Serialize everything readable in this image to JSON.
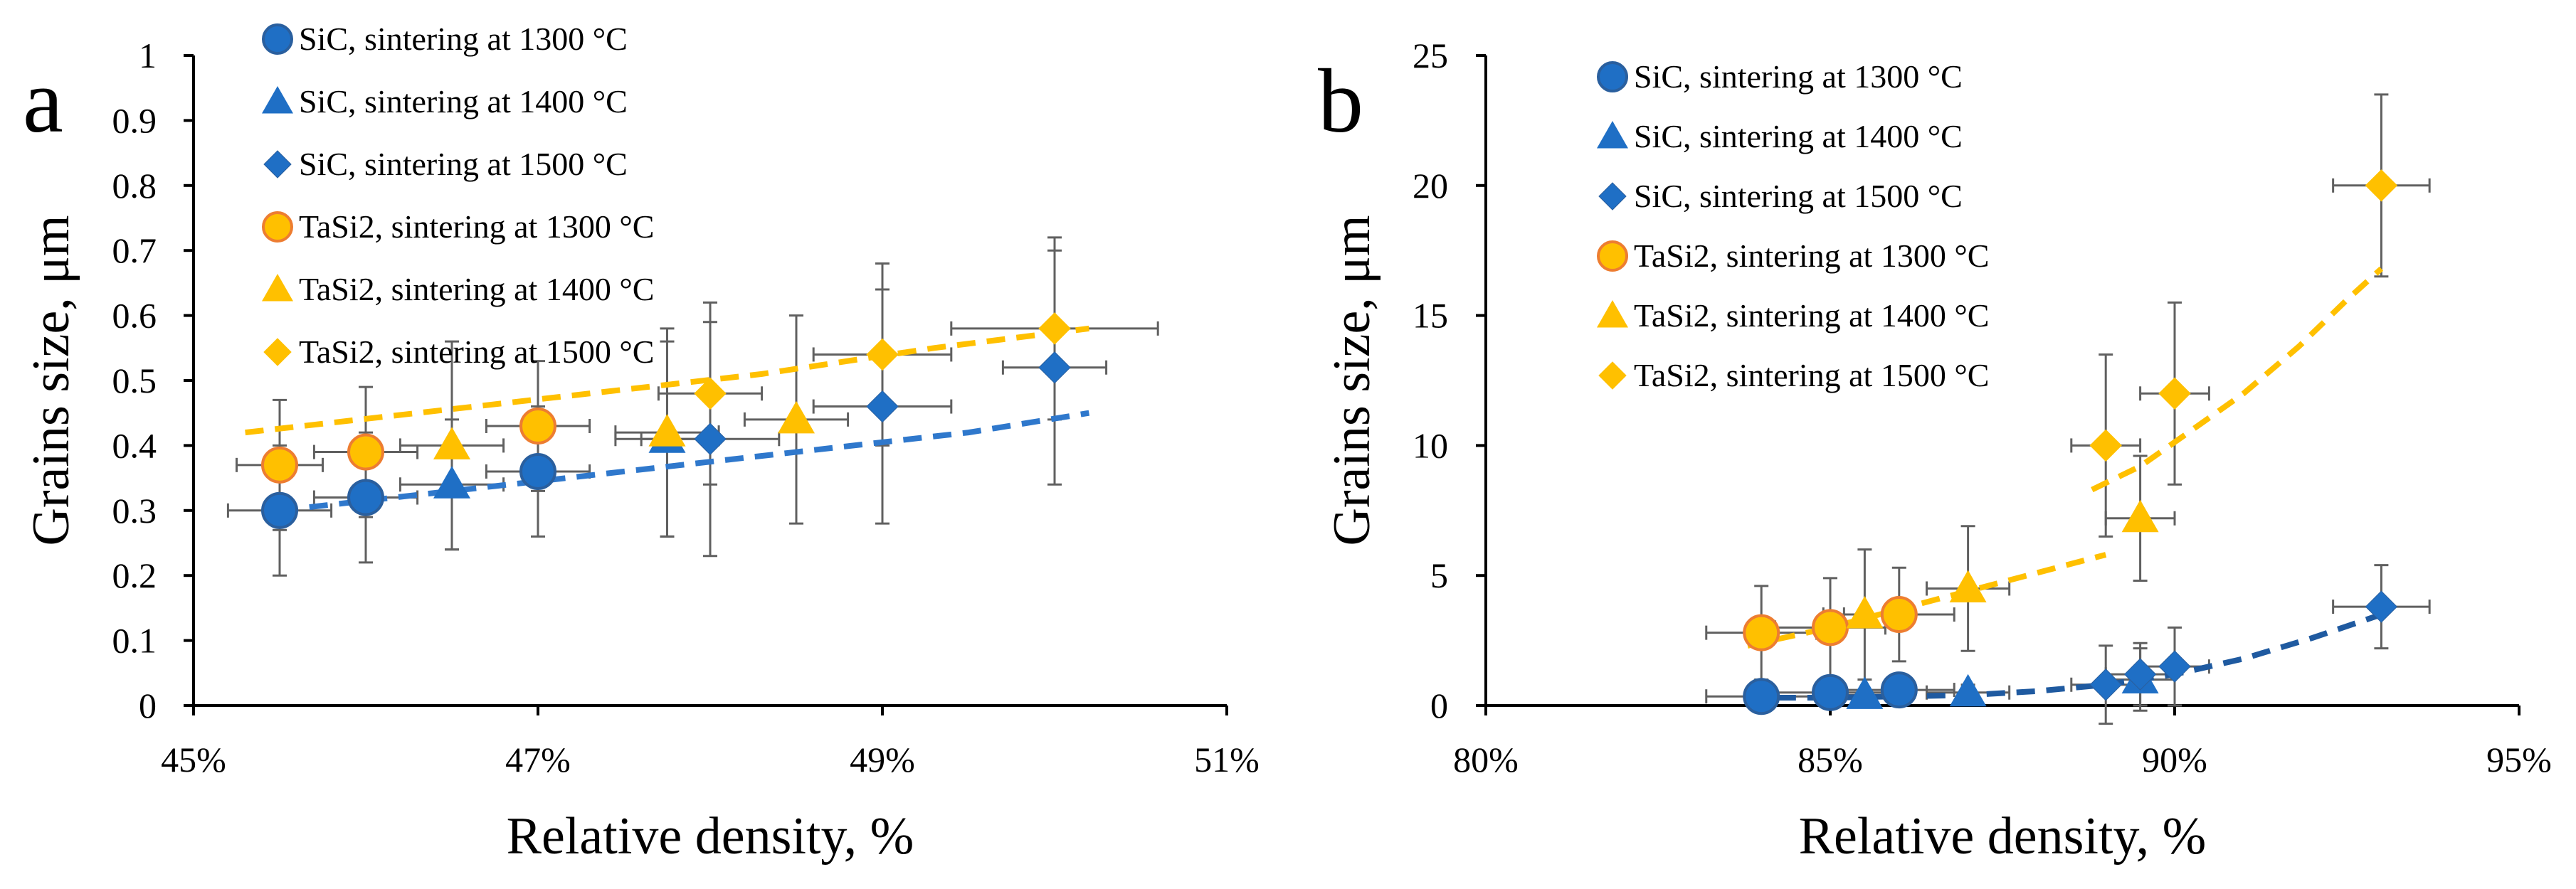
{
  "colors": {
    "sic": "#1f6fc5",
    "sic_marker_edge": "#2a5f9e",
    "tasi2": "#ffc000",
    "tasi2_circle_edge": "#ed7d31",
    "sic_trend": "#2f78cc",
    "sic_trend_b": "#1f5aa0",
    "tasi2_trend": "#ffc000",
    "error_bar": "#606060",
    "axis": "#000000"
  },
  "chart_data": [
    {
      "panel": "a",
      "type": "scatter",
      "xlabel": "Relative density, %",
      "ylabel": "Grains size, μm",
      "xlim": [
        45,
        51
      ],
      "ylim": [
        0,
        1
      ],
      "x_ticks": [
        45,
        47,
        49,
        51
      ],
      "x_tick_labels": [
        "45%",
        "47%",
        "49%",
        "51%"
      ],
      "y_ticks": [
        0,
        0.1,
        0.2,
        0.3,
        0.4,
        0.5,
        0.6,
        0.7,
        0.8,
        0.9,
        1
      ],
      "y_tick_labels": [
        "0",
        "0.1",
        "0.2",
        "0.3",
        "0.4",
        "0.5",
        "0.6",
        "0.7",
        "0.8",
        "0.9",
        "1"
      ],
      "legend_position": "top-left",
      "series": [
        {
          "name": "SiC, sintering at 1300 °C",
          "marker": "circle",
          "group": "sic",
          "points": [
            {
              "x": 45.5,
              "y": 0.3,
              "xerr": 0.3,
              "yerr": 0.1
            },
            {
              "x": 46.0,
              "y": 0.32,
              "xerr": 0.3,
              "yerr": 0.1
            },
            {
              "x": 47.0,
              "y": 0.36,
              "xerr": 0.3,
              "yerr": 0.1
            }
          ]
        },
        {
          "name": "SiC, sintering at 1400 °C",
          "marker": "triangle",
          "group": "sic",
          "points": [
            {
              "x": 46.5,
              "y": 0.34,
              "xerr": 0.3,
              "yerr": 0.1
            },
            {
              "x": 47.75,
              "y": 0.41,
              "xerr": 0.3,
              "yerr": 0.15
            }
          ]
        },
        {
          "name": "SiC, sintering at 1500 °C",
          "marker": "diamond",
          "group": "sic",
          "points": [
            {
              "x": 48.0,
              "y": 0.41,
              "xerr": 0.4,
              "yerr": 0.18
            },
            {
              "x": 49.0,
              "y": 0.46,
              "xerr": 0.4,
              "yerr": 0.18
            },
            {
              "x": 50.0,
              "y": 0.52,
              "xerr": 0.3,
              "yerr": 0.18
            }
          ]
        },
        {
          "name": "TaSi2, sintering at 1300 °C",
          "marker": "circle",
          "group": "tasi2",
          "points": [
            {
              "x": 45.5,
              "y": 0.37,
              "xerr": 0.25,
              "yerr": 0.1
            },
            {
              "x": 46.0,
              "y": 0.39,
              "xerr": 0.3,
              "yerr": 0.1
            },
            {
              "x": 47.0,
              "y": 0.43,
              "xerr": 0.3,
              "yerr": 0.1
            }
          ]
        },
        {
          "name": "TaSi2, sintering at 1400 °C",
          "marker": "triangle",
          "group": "tasi2",
          "points": [
            {
              "x": 46.5,
              "y": 0.4,
              "xerr": 0.3,
              "yerr": 0.16
            },
            {
              "x": 47.75,
              "y": 0.42,
              "xerr": 0.3,
              "yerr": 0.16
            },
            {
              "x": 48.5,
              "y": 0.44,
              "xerr": 0.3,
              "yerr": 0.16
            }
          ]
        },
        {
          "name": "TaSi2, sintering at 1500 °C",
          "marker": "diamond",
          "group": "tasi2",
          "points": [
            {
              "x": 48.0,
              "y": 0.48,
              "xerr": 0.3,
              "yerr": 0.14
            },
            {
              "x": 49.0,
              "y": 0.54,
              "xerr": 0.4,
              "yerr": 0.14
            },
            {
              "x": 50.0,
              "y": 0.58,
              "xerr": 0.6,
              "yerr": 0.14
            }
          ]
        }
      ],
      "trendlines": [
        {
          "group": "sic",
          "style": "dashed",
          "x": [
            45.5,
            46.5,
            47.5,
            48.5,
            49.5,
            50.2
          ],
          "y": [
            0.3,
            0.33,
            0.36,
            0.39,
            0.42,
            0.45
          ]
        },
        {
          "group": "tasi2",
          "style": "dashed",
          "x": [
            45.3,
            46.3,
            47.3,
            48.3,
            49.3,
            50.2
          ],
          "y": [
            0.42,
            0.45,
            0.48,
            0.51,
            0.55,
            0.58
          ]
        }
      ]
    },
    {
      "panel": "b",
      "type": "scatter",
      "xlabel": "Relative density, %",
      "ylabel": "Grains size, μm",
      "xlim": [
        80,
        95
      ],
      "ylim": [
        0,
        25
      ],
      "x_ticks": [
        80,
        85,
        90,
        95
      ],
      "x_tick_labels": [
        "80%",
        "85%",
        "90%",
        "95%"
      ],
      "y_ticks": [
        0,
        5,
        10,
        15,
        20,
        25
      ],
      "y_tick_labels": [
        "0",
        "5",
        "10",
        "15",
        "20",
        "25"
      ],
      "legend_position": "top-left",
      "series": [
        {
          "name": "SiC, sintering at 1300 °C",
          "marker": "circle",
          "group": "sic",
          "points": [
            {
              "x": 84.0,
              "y": 0.35,
              "xerr": 0.8,
              "yerr": 0.3
            },
            {
              "x": 85.0,
              "y": 0.5,
              "xerr": 0.8,
              "yerr": 0.3
            },
            {
              "x": 86.0,
              "y": 0.6,
              "xerr": 0.8,
              "yerr": 0.3
            }
          ]
        },
        {
          "name": "SiC, sintering at 1400 °C",
          "marker": "triangle",
          "group": "sic",
          "points": [
            {
              "x": 85.5,
              "y": 0.4,
              "xerr": 0.6,
              "yerr": 0.2
            },
            {
              "x": 87.0,
              "y": 0.5,
              "xerr": 0.6,
              "yerr": 0.3
            },
            {
              "x": 89.5,
              "y": 1.0,
              "xerr": 0.5,
              "yerr": 1.2
            }
          ]
        },
        {
          "name": "SiC, sintering at 1500 °C",
          "marker": "diamond",
          "group": "sic",
          "points": [
            {
              "x": 89.0,
              "y": 0.8,
              "xerr": 0.5,
              "yerr": 1.5
            },
            {
              "x": 89.5,
              "y": 1.2,
              "xerr": 0.5,
              "yerr": 1.2
            },
            {
              "x": 90.0,
              "y": 1.5,
              "xerr": 0.5,
              "yerr": 1.5
            },
            {
              "x": 93.0,
              "y": 3.8,
              "xerr": 0.7,
              "yerr": 1.6
            }
          ]
        },
        {
          "name": "TaSi2, sintering at 1300 °C",
          "marker": "circle",
          "group": "tasi2",
          "points": [
            {
              "x": 84.0,
              "y": 2.8,
              "xerr": 0.8,
              "yerr": 1.8
            },
            {
              "x": 85.0,
              "y": 3.0,
              "xerr": 0.8,
              "yerr": 1.9
            },
            {
              "x": 86.0,
              "y": 3.5,
              "xerr": 0.8,
              "yerr": 1.8
            }
          ]
        },
        {
          "name": "TaSi2, sintering at 1400 °C",
          "marker": "triangle",
          "group": "tasi2",
          "points": [
            {
              "x": 85.5,
              "y": 3.5,
              "xerr": 0.6,
              "yerr": 2.5
            },
            {
              "x": 87.0,
              "y": 4.5,
              "xerr": 0.6,
              "yerr": 2.4
            },
            {
              "x": 89.5,
              "y": 7.2,
              "xerr": 0.5,
              "yerr": 2.4
            }
          ]
        },
        {
          "name": "TaSi2, sintering at 1500 °C",
          "marker": "diamond",
          "group": "tasi2",
          "points": [
            {
              "x": 89.0,
              "y": 10.0,
              "xerr": 0.5,
              "yerr": 3.5
            },
            {
              "x": 90.0,
              "y": 12.0,
              "xerr": 0.5,
              "yerr": 3.5
            },
            {
              "x": 93.0,
              "y": 20.0,
              "xerr": 0.7,
              "yerr": 3.5
            }
          ]
        }
      ],
      "trendlines": [
        {
          "group": "tasi2",
          "style": "dashed",
          "x": [
            83.8,
            85.0,
            86.0,
            87.0,
            88.0,
            89.0
          ],
          "y": [
            2.3,
            3.0,
            3.7,
            4.4,
            5.1,
            5.8
          ]
        },
        {
          "group": "tasi2",
          "style": "dashed",
          "x": [
            88.8,
            89.5,
            90.2,
            91.0,
            91.8,
            92.5,
            93.0
          ],
          "y": [
            8.3,
            9.2,
            10.5,
            12.0,
            13.8,
            15.6,
            16.8
          ]
        },
        {
          "group": "sic_b",
          "style": "dashed",
          "x": [
            83.8,
            85.0,
            86.0,
            87.0,
            88.0,
            89.0,
            90.0,
            91.0,
            92.0,
            93.0
          ],
          "y": [
            0.3,
            0.3,
            0.35,
            0.4,
            0.55,
            0.8,
            1.2,
            1.8,
            2.6,
            3.5
          ]
        }
      ]
    }
  ]
}
